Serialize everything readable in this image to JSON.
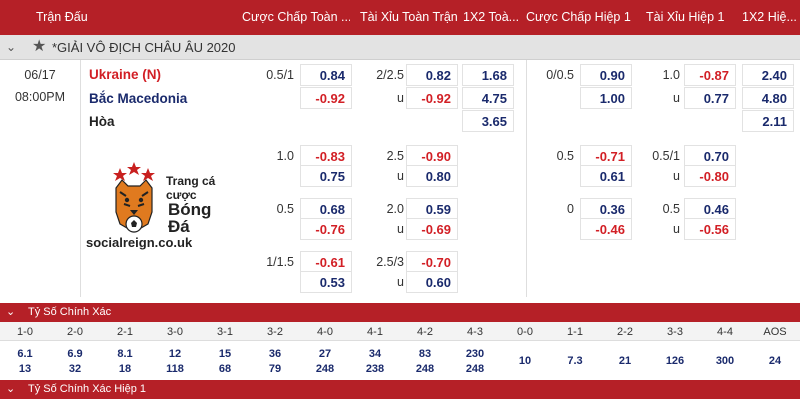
{
  "header": {
    "columns": [
      "Trận Đấu",
      "Cược Chấp Toàn ...",
      "Tài Xỉu Toàn Trận",
      "1X2 Toà...",
      "Cược Chấp Hiệp 1",
      "Tài Xỉu Hiệp 1",
      "1X2 Hiệ..."
    ]
  },
  "league": {
    "name": "*GIẢI VÔ ĐỊCH CHÂU ÂU 2020",
    "chevron": "chevron-down-icon",
    "star": "star-icon"
  },
  "match": {
    "date": "06/17",
    "time": "08:00PM",
    "home": "Ukraine (N)",
    "away": "Bắc Macedonia",
    "draw": "Hòa",
    "home_color": "#d21f25",
    "away_color": "#1a2a6c"
  },
  "lines": [
    {
      "hcp_line": "0.5/1",
      "hcp_home": "0.84",
      "hcp_away": "-0.92",
      "ou_line": "2/2.5",
      "ou_over": "0.82",
      "ou_u": "u",
      "ou_under": "-0.92",
      "x12_home": "1.68",
      "x12_away": "4.75",
      "x12_draw": "3.65",
      "h1_hcp_line": "0/0.5",
      "h1_hcp_home": "0.90",
      "h1_hcp_away": "1.00",
      "h1_ou_line": "1.0",
      "h1_ou_over": "-0.87",
      "h1_ou_u": "u",
      "h1_ou_under": "0.77",
      "h1_x12_home": "2.40",
      "h1_x12_away": "4.80",
      "h1_x12_draw": "2.11"
    },
    {
      "hcp_line": "1.0",
      "hcp_home": "-0.83",
      "hcp_away": "0.75",
      "ou_line": "2.5",
      "ou_over": "-0.90",
      "ou_u": "u",
      "ou_under": "0.80",
      "h1_hcp_line": "0.5",
      "h1_hcp_home": "-0.71",
      "h1_hcp_away": "0.61",
      "h1_ou_line": "0.5/1",
      "h1_ou_over": "0.70",
      "h1_ou_u": "u",
      "h1_ou_under": "-0.80"
    },
    {
      "hcp_line": "0.5",
      "hcp_home": "0.68",
      "hcp_away": "-0.76",
      "ou_line": "2.0",
      "ou_over": "0.59",
      "ou_u": "u",
      "ou_under": "-0.69",
      "h1_hcp_line": "0",
      "h1_hcp_home": "0.36",
      "h1_hcp_away": "-0.46",
      "h1_ou_line": "0.5",
      "h1_ou_over": "0.46",
      "h1_ou_u": "u",
      "h1_ou_under": "-0.56"
    },
    {
      "hcp_line": "1/1.5",
      "hcp_home": "-0.61",
      "hcp_away": "0.53",
      "ou_line": "2.5/3",
      "ou_over": "-0.70",
      "ou_u": "u",
      "ou_under": "0.60"
    }
  ],
  "logo": {
    "line1": "Trang cá",
    "line2": "cược",
    "line3": "Bóng",
    "line4": "Đá",
    "site": "socialreign.co.uk"
  },
  "correct_score": {
    "title": "Tỷ Số Chính Xác",
    "scores": [
      "1-0",
      "2-0",
      "2-1",
      "3-0",
      "3-1",
      "3-2",
      "4-0",
      "4-1",
      "4-2",
      "4-3",
      "0-0",
      "1-1",
      "2-2",
      "3-3",
      "4-4",
      "AOS"
    ],
    "home_odds": [
      "6.1",
      "6.9",
      "8.1",
      "12",
      "15",
      "36",
      "27",
      "34",
      "83",
      "230",
      "10",
      "7.3",
      "21",
      "126",
      "300",
      "24"
    ],
    "away_odds": [
      "13",
      "32",
      "18",
      "118",
      "68",
      "79",
      "248",
      "238",
      "248",
      "248",
      "",
      "",
      "",
      "",
      "",
      ""
    ]
  },
  "correct_score_h1": {
    "title": "Tỷ Số Chính Xác Hiệp 1"
  }
}
